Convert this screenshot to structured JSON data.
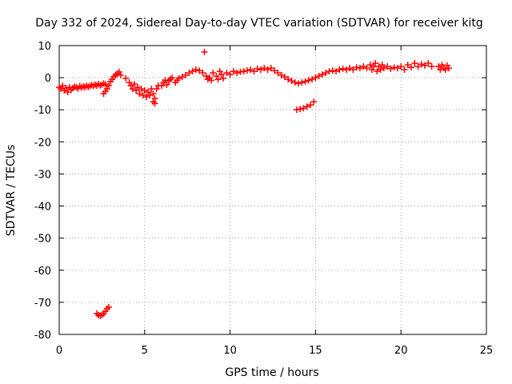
{
  "chart_data": {
    "type": "scatter",
    "title": "Day 332 of 2024, Sidereal Day-to-day VTEC variation (SDTVAR) for receiver kitg",
    "xlabel": "GPS time / hours",
    "ylabel": "SDTVAR / TECUs",
    "xlim": [
      0,
      25
    ],
    "ylim": [
      -80,
      10
    ],
    "xticks": [
      0,
      5,
      10,
      15,
      20,
      25
    ],
    "yticks": [
      10,
      0,
      -10,
      -20,
      -30,
      -40,
      -50,
      -60,
      -70,
      -80
    ],
    "grid": true,
    "marker": "plus",
    "series_color": "#ff0000",
    "series": [
      {
        "name": "SDTVAR",
        "points": [
          [
            0.0,
            -3.0
          ],
          [
            0.1,
            -3.5
          ],
          [
            0.2,
            -2.5
          ],
          [
            0.3,
            -4.0
          ],
          [
            0.4,
            -3.2
          ],
          [
            0.5,
            -4.5
          ],
          [
            0.6,
            -3.0
          ],
          [
            0.7,
            -3.8
          ],
          [
            0.8,
            -3.2
          ],
          [
            0.9,
            -2.8
          ],
          [
            1.0,
            -3.0
          ],
          [
            1.1,
            -3.4
          ],
          [
            1.2,
            -2.6
          ],
          [
            1.3,
            -3.1
          ],
          [
            1.4,
            -2.7
          ],
          [
            1.5,
            -3.0
          ],
          [
            1.6,
            -2.5
          ],
          [
            1.7,
            -2.9
          ],
          [
            1.8,
            -2.6
          ],
          [
            1.9,
            -2.3
          ],
          [
            2.0,
            -2.6
          ],
          [
            2.1,
            -2.2
          ],
          [
            2.2,
            -2.5
          ],
          [
            2.3,
            -2.0
          ],
          [
            2.4,
            -2.4
          ],
          [
            2.5,
            -2.2
          ],
          [
            2.6,
            -1.8
          ],
          [
            2.7,
            -2.1
          ],
          [
            2.6,
            -5.0
          ],
          [
            2.7,
            -4.2
          ],
          [
            2.8,
            -3.5
          ],
          [
            2.9,
            -2.5
          ],
          [
            3.0,
            -1.2
          ],
          [
            3.1,
            -0.5
          ],
          [
            3.2,
            0.3
          ],
          [
            3.3,
            0.8
          ],
          [
            3.4,
            1.2
          ],
          [
            3.5,
            1.8
          ],
          [
            3.6,
            0.8
          ],
          [
            3.9,
            -0.2
          ],
          [
            4.1,
            -1.5
          ],
          [
            4.2,
            -2.5
          ],
          [
            4.3,
            -3.5
          ],
          [
            4.4,
            -2.0
          ],
          [
            4.5,
            -4.0
          ],
          [
            4.6,
            -3.0
          ],
          [
            4.7,
            -5.0
          ],
          [
            4.8,
            -3.5
          ],
          [
            4.9,
            -5.5
          ],
          [
            5.0,
            -4.0
          ],
          [
            5.1,
            -6.0
          ],
          [
            5.2,
            -4.5
          ],
          [
            5.3,
            -5.5
          ],
          [
            5.4,
            -3.5
          ],
          [
            5.5,
            -5.0
          ],
          [
            5.6,
            -6.5
          ],
          [
            5.7,
            -3.5
          ],
          [
            5.8,
            -2.5
          ],
          [
            5.5,
            -7.5
          ],
          [
            5.6,
            -8.0
          ],
          [
            6.0,
            -2.5
          ],
          [
            6.1,
            -1.5
          ],
          [
            6.2,
            -0.8
          ],
          [
            6.3,
            -2.2
          ],
          [
            6.4,
            -1.0
          ],
          [
            6.5,
            -0.5
          ],
          [
            6.6,
            0.0
          ],
          [
            6.8,
            -1.5
          ],
          [
            6.9,
            -0.8
          ],
          [
            7.0,
            -0.2
          ],
          [
            7.2,
            0.2
          ],
          [
            7.4,
            0.8
          ],
          [
            7.6,
            1.5
          ],
          [
            7.8,
            2.0
          ],
          [
            8.0,
            2.5
          ],
          [
            8.2,
            2.2
          ],
          [
            8.4,
            1.5
          ],
          [
            8.5,
            8.0
          ],
          [
            8.6,
            0.5
          ],
          [
            8.7,
            -0.5
          ],
          [
            8.8,
            0.0
          ],
          [
            8.9,
            -0.8
          ],
          [
            9.0,
            1.5
          ],
          [
            9.2,
            0.5
          ],
          [
            9.3,
            -0.5
          ],
          [
            9.4,
            2.0
          ],
          [
            9.5,
            1.0
          ],
          [
            9.6,
            -0.2
          ],
          [
            9.8,
            1.5
          ],
          [
            10.0,
            1.0
          ],
          [
            10.2,
            2.0
          ],
          [
            10.4,
            1.5
          ],
          [
            10.6,
            1.8
          ],
          [
            10.8,
            2.0
          ],
          [
            11.0,
            2.2
          ],
          [
            11.2,
            2.5
          ],
          [
            11.4,
            2.0
          ],
          [
            11.6,
            2.8
          ],
          [
            11.8,
            2.5
          ],
          [
            12.0,
            3.0
          ],
          [
            12.2,
            2.5
          ],
          [
            12.4,
            3.0
          ],
          [
            12.6,
            2.2
          ],
          [
            12.8,
            1.5
          ],
          [
            13.0,
            0.8
          ],
          [
            13.2,
            0.2
          ],
          [
            13.4,
            -0.5
          ],
          [
            13.6,
            -1.0
          ],
          [
            13.8,
            -1.5
          ],
          [
            14.0,
            -1.8
          ],
          [
            14.2,
            -1.5
          ],
          [
            14.4,
            -1.2
          ],
          [
            14.6,
            -0.8
          ],
          [
            14.8,
            -0.5
          ],
          [
            15.0,
            0.0
          ],
          [
            13.9,
            -10.0
          ],
          [
            14.1,
            -9.8
          ],
          [
            14.3,
            -9.5
          ],
          [
            14.5,
            -9.0
          ],
          [
            14.7,
            -8.5
          ],
          [
            14.9,
            -7.5
          ],
          [
            15.2,
            0.5
          ],
          [
            15.4,
            1.0
          ],
          [
            15.6,
            1.5
          ],
          [
            15.8,
            2.0
          ],
          [
            16.0,
            2.2
          ],
          [
            16.2,
            2.0
          ],
          [
            16.4,
            2.5
          ],
          [
            16.6,
            2.8
          ],
          [
            16.8,
            2.5
          ],
          [
            17.0,
            3.0
          ],
          [
            17.2,
            2.5
          ],
          [
            17.4,
            3.2
          ],
          [
            17.6,
            3.0
          ],
          [
            17.8,
            3.5
          ],
          [
            18.0,
            3.0
          ],
          [
            18.2,
            4.0
          ],
          [
            18.3,
            2.5
          ],
          [
            18.4,
            3.5
          ],
          [
            18.5,
            4.5
          ],
          [
            18.6,
            2.0
          ],
          [
            18.7,
            3.5
          ],
          [
            18.8,
            2.5
          ],
          [
            18.9,
            4.0
          ],
          [
            19.0,
            3.0
          ],
          [
            19.2,
            3.5
          ],
          [
            19.4,
            2.8
          ],
          [
            19.6,
            3.2
          ],
          [
            19.8,
            3.0
          ],
          [
            20.0,
            3.5
          ],
          [
            20.2,
            2.5
          ],
          [
            20.4,
            4.0
          ],
          [
            20.6,
            3.2
          ],
          [
            20.8,
            4.5
          ],
          [
            21.0,
            3.5
          ],
          [
            21.2,
            4.2
          ],
          [
            21.4,
            3.8
          ],
          [
            21.6,
            4.5
          ],
          [
            21.8,
            3.5
          ],
          [
            22.2,
            3.5
          ],
          [
            22.3,
            2.5
          ],
          [
            22.4,
            4.0
          ],
          [
            22.5,
            3.0
          ],
          [
            22.6,
            2.5
          ],
          [
            22.7,
            3.8
          ],
          [
            22.8,
            3.0
          ],
          [
            2.2,
            -73.5
          ],
          [
            2.3,
            -74.0
          ],
          [
            2.4,
            -74.2
          ],
          [
            2.5,
            -74.0
          ],
          [
            2.6,
            -73.5
          ],
          [
            2.7,
            -72.8
          ],
          [
            2.8,
            -72.0
          ],
          [
            2.9,
            -71.5
          ]
        ]
      }
    ]
  }
}
